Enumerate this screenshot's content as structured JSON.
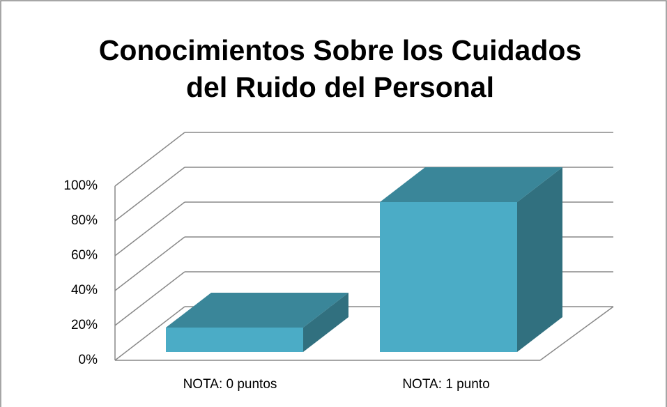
{
  "chart_data": {
    "type": "bar3d",
    "title": "Conocimientos Sobre los Cuidados del Ruido del Personal",
    "categories": [
      "NOTA: 0 puntos",
      "NOTA: 1 punto"
    ],
    "values": [
      14,
      86
    ],
    "color": "#4bacc6",
    "ylim": [
      0,
      100
    ],
    "yticks": [
      {
        "value": 0,
        "label": "0%"
      },
      {
        "value": 20,
        "label": "20%"
      },
      {
        "value": 40,
        "label": "40%"
      },
      {
        "value": 60,
        "label": "60%"
      },
      {
        "value": 80,
        "label": "80%"
      },
      {
        "value": 100,
        "label": "100%"
      }
    ],
    "grid": true
  }
}
